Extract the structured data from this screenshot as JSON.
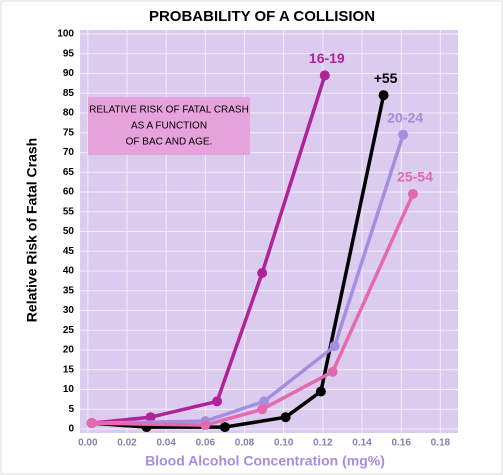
{
  "chart_data": {
    "type": "line",
    "title": "PROBABILITY OF A COLLISION",
    "xlabel": "Blood Alcohol Concentration (mg%)",
    "ylabel": "Relative Risk of Fatal Crash",
    "annotation": [
      "RELATIVE RISK OF FATAL CRASH",
      "AS A FUNCTION",
      "OF BAC AND AGE."
    ],
    "xlim": [
      -0.004,
      0.189
    ],
    "ylim": [
      -1,
      101
    ],
    "xticks": [
      {
        "value": 0,
        "label": "0.00"
      },
      {
        "value": 0.02,
        "label": "0.02"
      },
      {
        "value": 0.04,
        "label": "0.04"
      },
      {
        "value": 0.06,
        "label": "0.06"
      },
      {
        "value": 0.08,
        "label": "0.08"
      },
      {
        "value": 0.1,
        "label": "0.10"
      },
      {
        "value": 0.12,
        "label": "0.12"
      },
      {
        "value": 0.14,
        "label": "0.14"
      },
      {
        "value": 0.16,
        "label": "0.16"
      },
      {
        "value": 0.18,
        "label": "0.18"
      }
    ],
    "yticks": [
      0,
      5,
      10,
      15,
      20,
      25,
      30,
      35,
      40,
      45,
      50,
      55,
      60,
      65,
      70,
      75,
      80,
      85,
      90,
      95,
      100
    ],
    "grid": true,
    "series": [
      {
        "name": "16-19",
        "color": "#b0229a",
        "x": [
          0.002,
          0.032,
          0.066,
          0.089,
          0.121
        ],
        "values": [
          1.5,
          3,
          7,
          39.5,
          89.5
        ]
      },
      {
        "name": "+55",
        "color": "#000000",
        "x": [
          0.002,
          0.03,
          0.07,
          0.101,
          0.119,
          0.151
        ],
        "values": [
          1.5,
          0.5,
          0.5,
          3,
          9.5,
          84.5
        ]
      },
      {
        "name": "20-24",
        "color": "#a58ee0",
        "x": [
          0.002,
          0.06,
          0.09,
          0.126,
          0.161
        ],
        "values": [
          1.5,
          2,
          7,
          21,
          74.5
        ]
      },
      {
        "name": "25-54",
        "color": "#e46aae",
        "x": [
          0.002,
          0.06,
          0.089,
          0.125,
          0.166
        ],
        "values": [
          1.5,
          1,
          5,
          14.5,
          59.5
        ]
      }
    ]
  }
}
